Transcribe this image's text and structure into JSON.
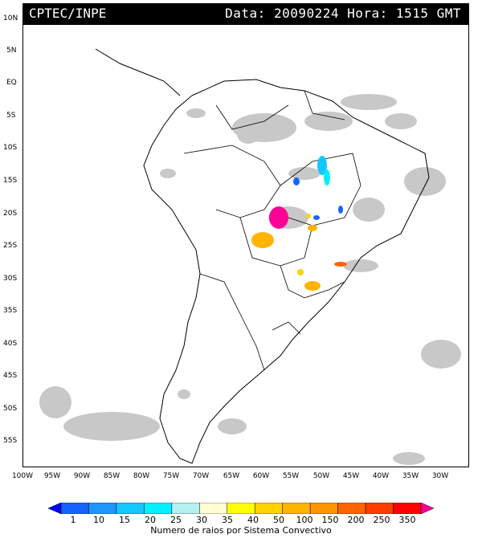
{
  "header": {
    "source": "CPTEC/INPE",
    "datetime": "Data: 20090224 Hora: 1515 GMT"
  },
  "lat_labels": [
    "10N",
    "5N",
    "EQ",
    "5S",
    "10S",
    "15S",
    "20S",
    "25S",
    "30S",
    "35S",
    "40S",
    "45S",
    "50S",
    "55S"
  ],
  "lon_labels": [
    "100W",
    "95W",
    "90W",
    "85W",
    "80W",
    "75W",
    "70W",
    "65W",
    "60W",
    "55W",
    "50W",
    "45W",
    "40W",
    "35W",
    "30W"
  ],
  "legend": {
    "ticks": [
      "1",
      "10",
      "15",
      "20",
      "25",
      "30",
      "35",
      "40",
      "50",
      "100",
      "150",
      "200",
      "250",
      "350"
    ],
    "colors": [
      "#0000ff",
      "#1464ff",
      "#1e96ff",
      "#14c8ff",
      "#00f0ff",
      "#b4f0f0",
      "#ffffd2",
      "#ffff00",
      "#ffd200",
      "#ffb400",
      "#ff9600",
      "#ff6400",
      "#ff3c00",
      "#ff0000",
      "#ff0096"
    ],
    "caption": "Numero de raios por Sistema Convectivo"
  },
  "map_colors": {
    "cloud": "#c8c8c8",
    "coast": "#000000"
  }
}
